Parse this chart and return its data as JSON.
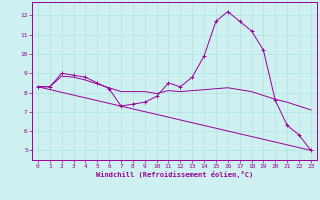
{
  "xlabel": "Windchill (Refroidissement éolien,°C)",
  "background_color": "#cef0f0",
  "line_color": "#990099",
  "grid_color": "#aadddd",
  "spine_color": "#990099",
  "xlim": [
    -0.5,
    23.5
  ],
  "ylim": [
    4.5,
    12.7
  ],
  "xticks": [
    0,
    1,
    2,
    3,
    4,
    5,
    6,
    7,
    8,
    9,
    10,
    11,
    12,
    13,
    14,
    15,
    16,
    17,
    18,
    19,
    20,
    21,
    22,
    23
  ],
  "yticks": [
    5,
    6,
    7,
    8,
    9,
    10,
    11,
    12
  ],
  "series": {
    "line1": {
      "x": [
        0,
        1,
        2,
        3,
        4,
        5,
        6,
        7,
        8,
        9,
        10,
        11,
        12,
        13,
        14,
        15,
        16,
        17,
        18,
        19,
        20,
        21,
        22,
        23
      ],
      "y": [
        8.3,
        8.3,
        9.0,
        8.9,
        8.8,
        8.5,
        8.2,
        7.3,
        7.4,
        7.5,
        7.8,
        8.5,
        8.3,
        8.8,
        9.9,
        11.7,
        12.2,
        11.7,
        11.2,
        10.2,
        7.6,
        6.3,
        5.8,
        5.0
      ]
    },
    "line2": {
      "x": [
        0,
        23
      ],
      "y": [
        8.3,
        5.0
      ]
    },
    "line3": {
      "x": [
        0,
        1,
        2,
        3,
        4,
        5,
        6,
        7,
        8,
        9,
        10,
        11,
        12,
        13,
        14,
        15,
        16,
        17,
        18,
        19,
        20,
        21,
        22,
        23
      ],
      "y": [
        8.3,
        8.3,
        8.85,
        8.8,
        8.65,
        8.45,
        8.25,
        8.05,
        8.05,
        8.05,
        7.95,
        8.1,
        8.05,
        8.1,
        8.15,
        8.2,
        8.25,
        8.15,
        8.05,
        7.85,
        7.65,
        7.5,
        7.3,
        7.1
      ]
    }
  }
}
